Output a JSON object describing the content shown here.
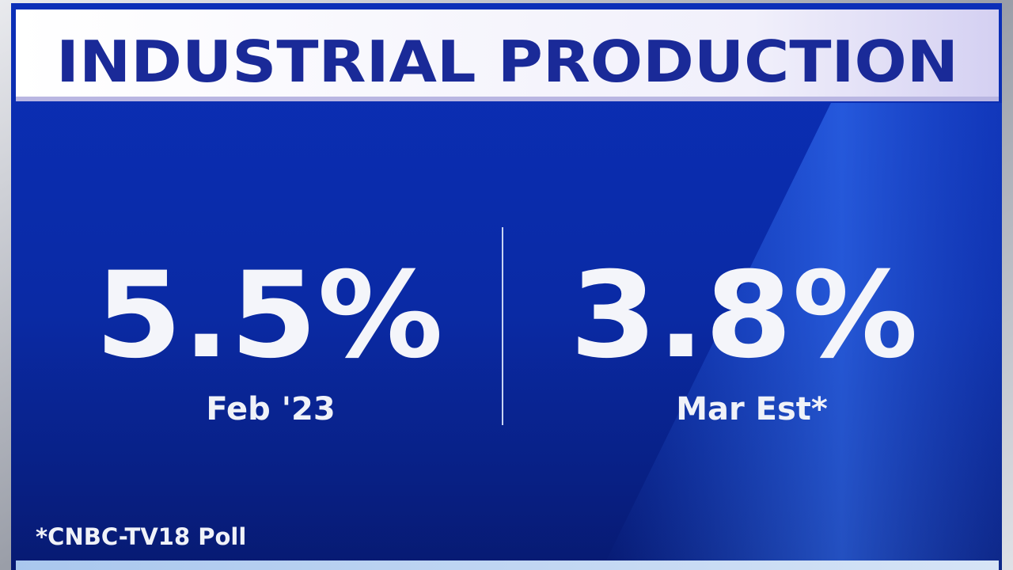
{
  "header": {
    "title": "INDUSTRIAL PRODUCTION"
  },
  "stats": [
    {
      "value": "5.5%",
      "label": "Feb '23"
    },
    {
      "value": "3.8%",
      "label": "Mar Est*"
    }
  ],
  "footnote": "*CNBC-TV18 Poll"
}
